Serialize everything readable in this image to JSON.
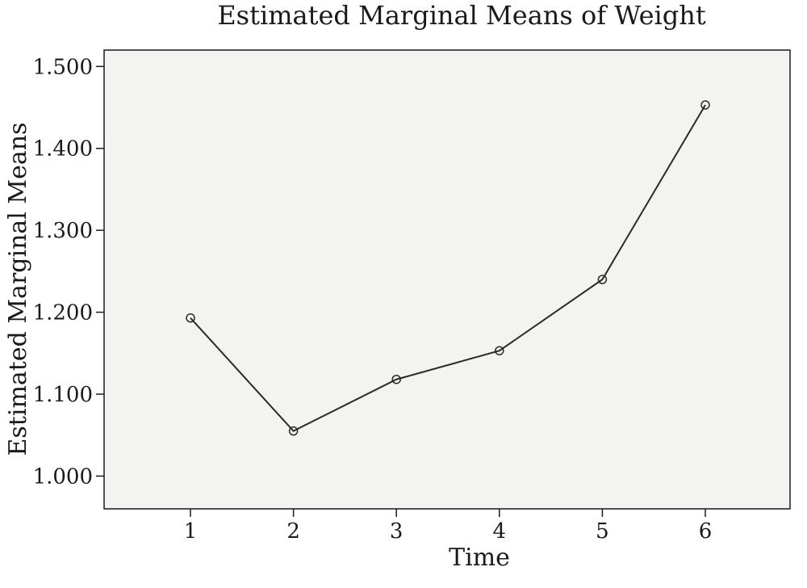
{
  "chart_data": {
    "type": "line",
    "title": "Estimated Marginal Means of Weight",
    "xlabel": "Time",
    "ylabel": "Estimated Marginal Means",
    "categories": [
      "1",
      "2",
      "3",
      "4",
      "5",
      "6"
    ],
    "y_tick_labels": [
      "1.000",
      "1.100",
      "1.200",
      "1.300",
      "1.400",
      "1.500"
    ],
    "y_ticks": [
      1000,
      1100,
      1200,
      1300,
      1400,
      1500
    ],
    "ylim": [
      960,
      1520
    ],
    "series": [
      {
        "values": [
          1193,
          1055,
          1118,
          1153,
          1240,
          1453
        ]
      }
    ],
    "grid": false,
    "colors": {
      "plot_background": "#f3f4f2",
      "line": "#2a2a2a"
    }
  }
}
